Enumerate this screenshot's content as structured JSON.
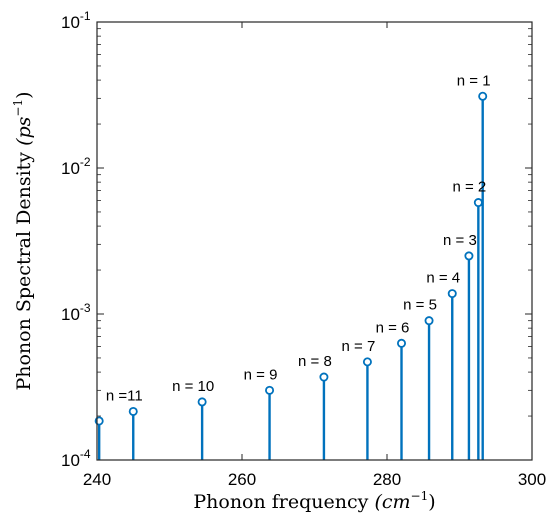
{
  "chart_data": {
    "type": "stem",
    "xlabel": "Phonon frequency",
    "xlabel_unit": "(cm",
    "xlabel_unit_exp": "−1",
    "xlabel_unit_close": ")",
    "ylabel": "Phonon Spectral Density",
    "ylabel_unit": "(ps",
    "ylabel_unit_exp": "−1",
    "ylabel_unit_close": ")",
    "xlim": [
      240,
      300
    ],
    "ylim": [
      0.0001,
      0.1
    ],
    "yscale": "log",
    "grid": false,
    "color": "#0072BD",
    "x_ticks": [
      {
        "value": 240,
        "label": "240"
      },
      {
        "value": 260,
        "label": "260"
      },
      {
        "value": 280,
        "label": "280"
      },
      {
        "value": 300,
        "label": "300"
      }
    ],
    "y_ticks": [
      {
        "value": 0.0001,
        "base": "10",
        "exp": "-4"
      },
      {
        "value": 0.001,
        "base": "10",
        "exp": "-3"
      },
      {
        "value": 0.01,
        "base": "10",
        "exp": "-2"
      },
      {
        "value": 0.1,
        "base": "10",
        "exp": "-1"
      }
    ],
    "points": [
      {
        "x": 240.3,
        "y": 0.000185,
        "label": ""
      },
      {
        "x": 245.0,
        "y": 0.000215,
        "label": "n =11"
      },
      {
        "x": 254.5,
        "y": 0.00025,
        "label": "n = 10"
      },
      {
        "x": 263.8,
        "y": 0.0003,
        "label": "n = 9"
      },
      {
        "x": 271.3,
        "y": 0.00037,
        "label": "n = 8"
      },
      {
        "x": 277.3,
        "y": 0.00047,
        "label": "n = 7"
      },
      {
        "x": 282.0,
        "y": 0.00063,
        "label": "n = 6"
      },
      {
        "x": 285.8,
        "y": 0.0009,
        "label": "n = 5"
      },
      {
        "x": 289.0,
        "y": 0.00138,
        "label": "n = 4"
      },
      {
        "x": 291.3,
        "y": 0.0025,
        "label": "n = 3"
      },
      {
        "x": 292.6,
        "y": 0.0058,
        "label": "n = 2"
      },
      {
        "x": 293.2,
        "y": 0.031,
        "label": "n = 1"
      }
    ]
  }
}
